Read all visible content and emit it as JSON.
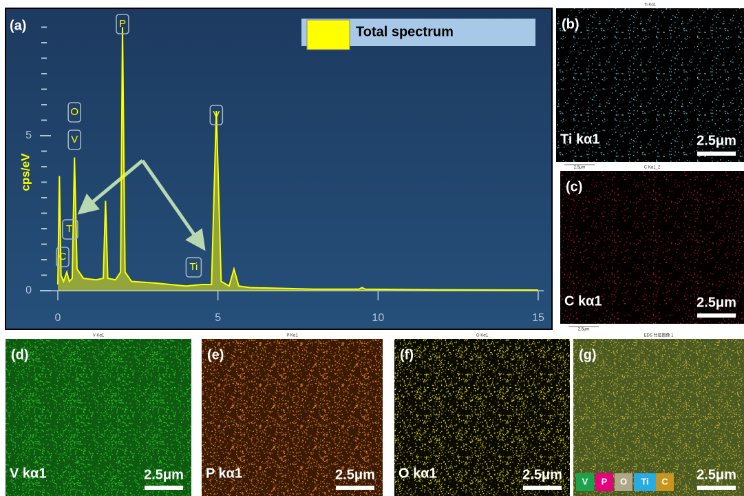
{
  "chart_data": {
    "type": "line",
    "panel": "(a)",
    "y_label": "cps/eV",
    "legend": "Total spectrum",
    "color": "#ffff00",
    "xlim": [
      0,
      15
    ],
    "xticks": [
      0,
      5,
      10,
      15
    ],
    "ylim": [
      0,
      9
    ],
    "yticks": [
      0,
      5
    ],
    "yminorticks": [
      0.5,
      1,
      1.5,
      2,
      2.5,
      3,
      3.5,
      4,
      4.5,
      5.5,
      6,
      6.5,
      7,
      7.5,
      8,
      8.5
    ],
    "x": [
      0,
      0.05,
      0.1,
      0.18,
      0.28,
      0.36,
      0.45,
      0.52,
      0.6,
      0.8,
      1.2,
      1.42,
      1.49,
      1.56,
      1.8,
      1.96,
      2.02,
      2.1,
      2.3,
      3,
      4,
      4.5,
      4.8,
      4.95,
      5.1,
      5.35,
      5.5,
      5.65,
      6,
      8,
      9.4,
      9.5,
      9.6,
      12,
      15
    ],
    "values": [
      0.2,
      3.7,
      0.5,
      0.3,
      0.6,
      0.3,
      0.4,
      4.3,
      0.7,
      0.4,
      0.35,
      0.4,
      2.9,
      0.4,
      0.35,
      0.6,
      8.5,
      0.6,
      0.3,
      0.25,
      0.15,
      0.2,
      0.2,
      5.8,
      0.3,
      0.15,
      0.7,
      0.15,
      0.1,
      0.05,
      0.05,
      0.1,
      0.05,
      0.03,
      0.02
    ],
    "peaks": [
      {
        "label": "P",
        "x": 2.02
      },
      {
        "label": "O",
        "x": 0.52
      },
      {
        "label": "V",
        "x": 0.52
      },
      {
        "label": "Ti",
        "x": 0.45
      },
      {
        "label": "C",
        "x": 0.28
      },
      {
        "label": "V",
        "x": 4.95
      },
      {
        "label": "Ti",
        "x": 4.5
      }
    ]
  },
  "maps": [
    {
      "panel": "(b)",
      "caption": "Ti Kα1",
      "label": "Ti kα1",
      "scale": "2.5μm",
      "under": "2.5μm",
      "dot": "#5fd3d8",
      "bg": "#000000"
    },
    {
      "panel": "(c)",
      "caption": "C Kα1_2",
      "label": "C kα1",
      "scale": "2.5μm",
      "under": "2.5μm",
      "dot": "#c0202a",
      "bg": "#050000"
    },
    {
      "panel": "(d)",
      "caption": "V Kα1",
      "label": "V kα1",
      "scale": "2.5μm",
      "dot": "#30d030",
      "bg": "#0e5a10"
    },
    {
      "panel": "(e)",
      "caption": "P Kα1",
      "label": "P kα1",
      "scale": "2.5μm",
      "dot": "#f08a20",
      "bg": "#3a1a04"
    },
    {
      "panel": "(f)",
      "caption": "O Kα1",
      "label": "O kα1",
      "scale": "2.5μm",
      "dot": "#e6e020",
      "bg": "#0a0a00"
    },
    {
      "panel": "(g)",
      "caption": "EDS 分层图像 1",
      "scale": "2.5μm",
      "dot": "#c8b040",
      "bg": "#4a5a20",
      "elements": [
        {
          "name": "V",
          "color": "#1aa34a"
        },
        {
          "name": "P",
          "color": "#e6007e"
        },
        {
          "name": "O",
          "color": "#b0a68a"
        },
        {
          "name": "Ti",
          "color": "#29abe2"
        },
        {
          "name": "C",
          "color": "#c8961e"
        }
      ]
    }
  ]
}
